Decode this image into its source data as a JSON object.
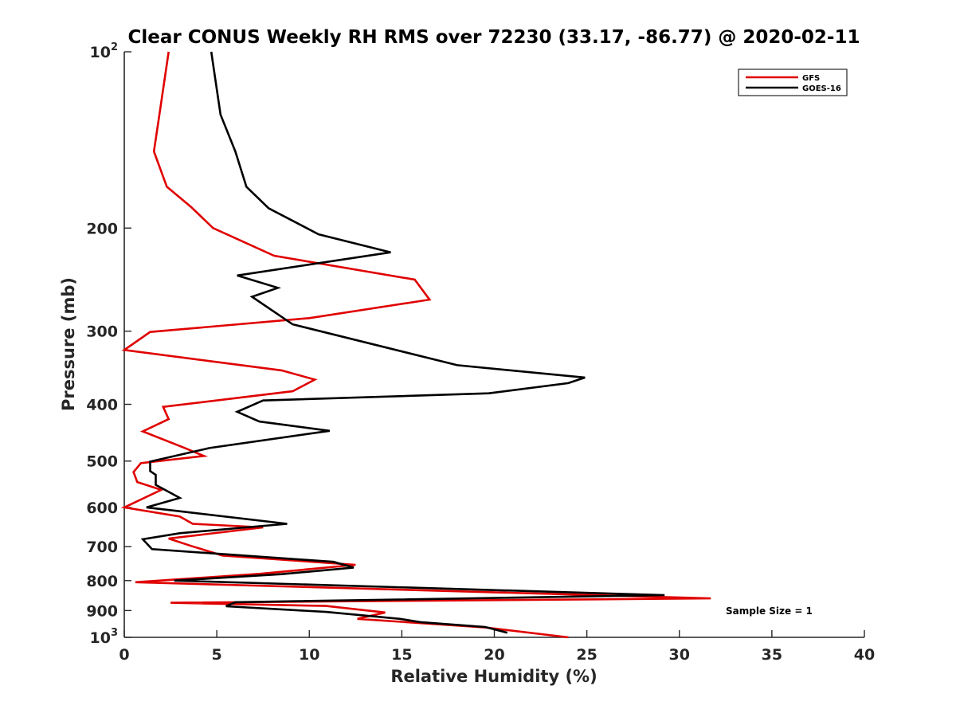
{
  "chart_data": {
    "type": "line",
    "title": "Clear CONUS Weekly RH RMS over 72230 (33.17, -86.77) @ 2020-02-11",
    "xlabel": "Relative Humidity (%)",
    "ylabel": "Pressure (mb)",
    "xlim": [
      0,
      40
    ],
    "ylim": [
      100,
      1000
    ],
    "yscale": "log",
    "y_reversed": true,
    "grid": false,
    "xticks": [
      "0",
      "5",
      "10",
      "15",
      "20",
      "25",
      "30",
      "35",
      "40"
    ],
    "yticks": [
      {
        "value": 100,
        "base": "10",
        "exp": "2"
      },
      {
        "value": 200,
        "label": "200"
      },
      {
        "value": 300,
        "label": "300"
      },
      {
        "value": 400,
        "label": "400"
      },
      {
        "value": 500,
        "label": "500"
      },
      {
        "value": 600,
        "label": "600"
      },
      {
        "value": 700,
        "label": "700"
      },
      {
        "value": 800,
        "label": "800"
      },
      {
        "value": 900,
        "label": "900"
      },
      {
        "value": 1000,
        "base": "10",
        "exp": "3"
      }
    ],
    "legend_position": "top-right",
    "annotation": "Sample Size = 1",
    "series": [
      {
        "name": "GFS",
        "color": "#e00000",
        "x": [
          2.4,
          1.9,
          1.6,
          2.3,
          3.6,
          4.8,
          8.1,
          15.7,
          16.5,
          10.0,
          1.4,
          0.0,
          8.5,
          10.3,
          9.1,
          2.1,
          2.4,
          1.0,
          3.2,
          4.3,
          0.9,
          0.5,
          0.7,
          2.0,
          0.0,
          3.0,
          3.7,
          7.5,
          2.4,
          3.6,
          5.3,
          12.5,
          7.3,
          0.6,
          31.7,
          2.5,
          10.9,
          14.1,
          12.6,
          19.5,
          24.0
        ],
        "y": [
          100,
          128,
          148,
          170,
          184,
          200,
          223,
          245,
          265,
          285,
          301,
          323,
          350,
          363,
          380,
          404,
          424,
          445,
          474,
          490,
          504,
          522,
          543,
          560,
          600,
          622,
          640,
          649,
          678,
          698,
          725,
          752,
          779,
          805,
          858,
          873,
          884,
          907,
          930,
          962,
          1000
        ]
      },
      {
        "name": "GOES-16",
        "color": "#000000",
        "x": [
          4.7,
          5.2,
          6.0,
          6.6,
          7.8,
          10.5,
          14.4,
          6.1,
          8.3,
          6.9,
          9.1,
          18.0,
          24.9,
          24.0,
          19.7,
          7.5,
          6.1,
          7.3,
          11.1,
          4.6,
          1.4,
          1.4,
          1.7,
          1.7,
          3.0,
          1.2,
          2.8,
          8.8,
          3.0,
          1.0,
          1.5,
          11.3,
          12.4,
          8.5,
          2.7,
          29.2,
          6.0,
          5.5,
          10.9,
          14.9,
          16.0,
          19.5,
          20.7
        ],
        "y": [
          100,
          128,
          148,
          170,
          185,
          205,
          220,
          241,
          253,
          262,
          292,
          343,
          360,
          368,
          383,
          394,
          412,
          428,
          444,
          475,
          501,
          520,
          528,
          549,
          578,
          600,
          608,
          640,
          664,
          680,
          707,
          743,
          760,
          780,
          800,
          847,
          871,
          885,
          905,
          930,
          942,
          960,
          982
        ]
      }
    ]
  }
}
